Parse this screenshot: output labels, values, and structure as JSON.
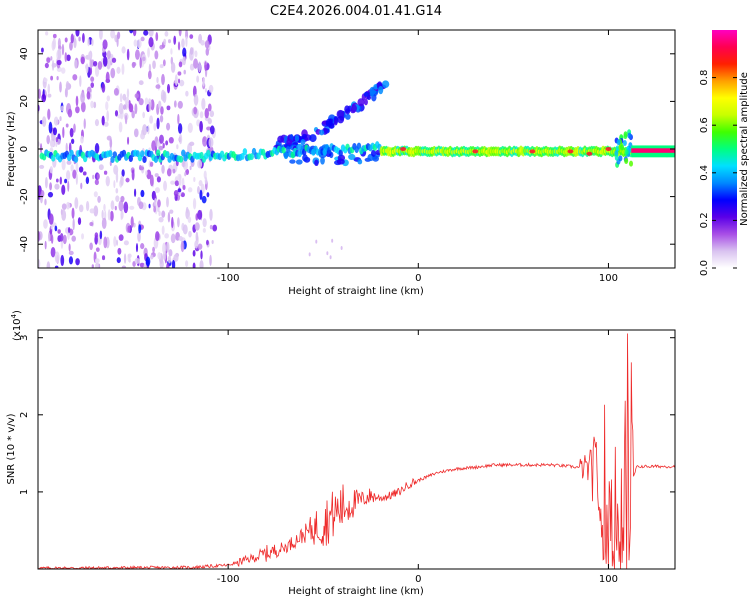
{
  "title": "C2E4.2026.004.01.41.G14",
  "colors": {
    "snr_line": "#ee2a2a",
    "background": "#ffffff",
    "axis": "#000000"
  },
  "chart_data": [
    {
      "type": "heatmap",
      "name": "spectrogram",
      "xlabel": "Height of straight line (km)",
      "ylabel": "Frequency (Hz)",
      "xlim": [
        -200,
        135
      ],
      "ylim": [
        -50,
        50
      ],
      "x_ticks": [
        -100,
        0,
        100
      ],
      "y_ticks": [
        -40,
        -20,
        0,
        20,
        40
      ],
      "colorbar": {
        "label": "Normalized spectral amplitude",
        "range": [
          0.0,
          1.0
        ],
        "ticks": [
          "0.0",
          "0.2",
          "0.4",
          "0.6",
          "0.8"
        ],
        "ticks_values": [
          0.0,
          0.2,
          0.4,
          0.6,
          0.8
        ],
        "colormap": [
          "#ffffff",
          "#d9c2f0",
          "#a84ee6",
          "#5a00e8",
          "#0000ff",
          "#0088ff",
          "#00e0ff",
          "#00ff80",
          "#40ff00",
          "#c8ff00",
          "#ffff00",
          "#ffa000",
          "#ff2000",
          "#ff0050",
          "#ff00c0"
        ]
      },
      "features": [
        {
          "name": "noise region",
          "x_range": [
            -200,
            -107
          ],
          "freq_range": [
            -50,
            50
          ],
          "amplitude": 0.15
        },
        {
          "name": "main carrier",
          "x_range": [
            -200,
            135
          ],
          "freq_center": 0,
          "amplitude": 0.6
        },
        {
          "name": "fading branch",
          "x_range": [
            -75,
            -15
          ],
          "freq_range": [
            0,
            30
          ],
          "amplitude": 0.3
        }
      ]
    },
    {
      "type": "line",
      "name": "snr",
      "xlabel": "Height of straight line (km)",
      "ylabel": "SNR (10 * v/v)",
      "scale_label": "(x10",
      "scale_exponent": "4",
      "scale_suffix": ")",
      "xlim": [
        -200,
        135
      ],
      "ylim": [
        0,
        3.1
      ],
      "x_ticks": [
        -100,
        0,
        100
      ],
      "y_ticks": [
        1,
        2,
        3
      ],
      "series": [
        {
          "name": "SNR",
          "x": [
            -200,
            -120,
            -100,
            -90,
            -80,
            -70,
            -60,
            -50,
            -45,
            -40,
            -35,
            -30,
            -25,
            -20,
            -15,
            -10,
            -5,
            0,
            10,
            20,
            30,
            40,
            50,
            60,
            70,
            80,
            90,
            95,
            100,
            105,
            108,
            110,
            112,
            115,
            120,
            135
          ],
          "y": [
            0.01,
            0.02,
            0.05,
            0.12,
            0.2,
            0.28,
            0.45,
            0.6,
            0.7,
            0.8,
            0.85,
            0.9,
            0.95,
            0.92,
            0.95,
            1.0,
            1.1,
            1.15,
            1.25,
            1.3,
            1.32,
            1.35,
            1.35,
            1.35,
            1.35,
            1.33,
            1.3,
            1.2,
            1.0,
            1.1,
            0.9,
            1.2,
            1.1,
            1.33,
            1.33,
            1.33
          ],
          "envelope": [
            0.01,
            0.02,
            0.05,
            0.15,
            0.3,
            0.35,
            0.55,
            0.9,
            1.0,
            1.1,
            1.05,
            1.0,
            1.05,
            0.95,
            1.0,
            1.05,
            1.1,
            1.15,
            1.28,
            1.32,
            1.35,
            1.38,
            1.38,
            1.38,
            1.38,
            1.38,
            1.5,
            1.9,
            2.2,
            2.4,
            2.6,
            3.1,
            2.8,
            1.34,
            1.34,
            1.34
          ]
        }
      ]
    }
  ]
}
